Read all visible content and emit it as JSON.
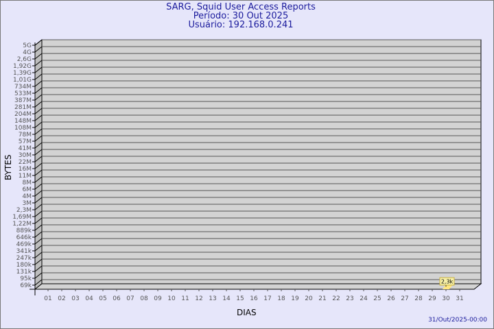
{
  "header": {
    "title": "SARG, Squid User Access Reports",
    "period": "Período: 30 Out 2025",
    "user": "Usuário: 192.168.0.241"
  },
  "footer": {
    "timestamp": "31/Out/2025-00:00"
  },
  "colors": {
    "background": "#e6e6fa",
    "wall": "#d3d3d3",
    "side": "#bdbdbd",
    "bar": "#ffe680",
    "title": "#1a1a9c"
  },
  "chart_data": {
    "type": "bar",
    "xlabel": "DIAS",
    "ylabel": "BYTES",
    "y_scale": "log",
    "y_tick_labels": [
      "5G",
      "4G",
      "2,6G",
      "1,92G",
      "1,39G",
      "1,01G",
      "734M",
      "533M",
      "387M",
      "281M",
      "204M",
      "148M",
      "108M",
      "78M",
      "57M",
      "41M",
      "30M",
      "22M",
      "16M",
      "11M",
      "8M",
      "6M",
      "4M",
      "3M",
      "2,3M",
      "1,69M",
      "1,22M",
      "889k",
      "646k",
      "469k",
      "341k",
      "247k",
      "180k",
      "131k",
      "95k",
      "69k"
    ],
    "categories": [
      "01",
      "02",
      "03",
      "04",
      "05",
      "06",
      "07",
      "08",
      "09",
      "10",
      "11",
      "12",
      "13",
      "14",
      "15",
      "16",
      "17",
      "18",
      "19",
      "20",
      "21",
      "22",
      "23",
      "24",
      "25",
      "26",
      "27",
      "28",
      "29",
      "30",
      "31"
    ],
    "values": [
      0,
      0,
      0,
      0,
      0,
      0,
      0,
      0,
      0,
      0,
      0,
      0,
      0,
      0,
      0,
      0,
      0,
      0,
      0,
      0,
      0,
      0,
      0,
      0,
      0,
      0,
      0,
      0,
      0,
      2300,
      0
    ],
    "data_labels": {
      "30": "2,3k"
    },
    "grid": true
  }
}
